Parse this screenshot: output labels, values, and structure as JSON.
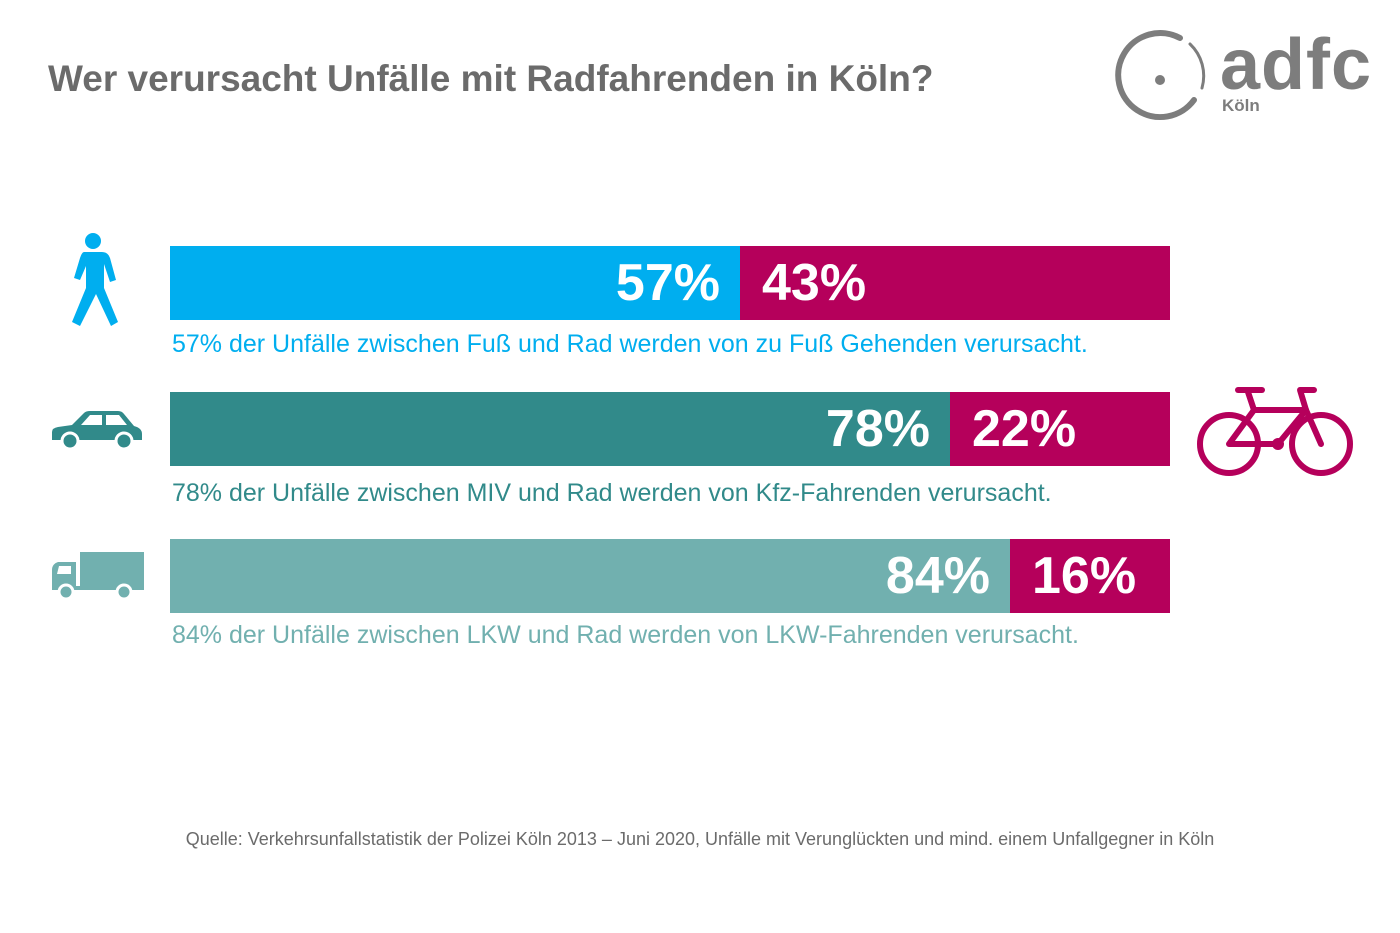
{
  "title": "Wer verursacht Unfälle mit Radfahrenden in Köln?",
  "logo": {
    "word": "adfc",
    "sub": "Köln"
  },
  "colors": {
    "bike_share": "#b5005b",
    "pedestrian": "#00aeef",
    "car": "#318a8a",
    "truck": "#71b0af",
    "title_text": "#6b6b6b"
  },
  "chart_data": {
    "type": "bar",
    "stacked": true,
    "orientation": "horizontal",
    "unit": "%",
    "categories": [
      {
        "icon": "pedestrian-icon",
        "main_value": 57,
        "bike_value": 43,
        "main_label": "57%",
        "bike_label": "43%",
        "color": "#00aeef",
        "caption": "57% der Unfälle zwischen Fuß und Rad werden von zu Fuß Gehenden verursacht."
      },
      {
        "icon": "car-icon",
        "main_value": 78,
        "bike_value": 22,
        "main_label": "78%",
        "bike_label": "22%",
        "color": "#318a8a",
        "caption": "78% der Unfälle zwischen MIV und Rad werden von Kfz-Fahrenden verursacht."
      },
      {
        "icon": "truck-icon",
        "main_value": 84,
        "bike_value": 16,
        "main_label": "84%",
        "bike_label": "16%",
        "color": "#71b0af",
        "caption": "84% der Unfälle zwischen LKW und Rad werden von LKW-Fahrenden verursacht."
      }
    ],
    "bike_icon": "bicycle-icon"
  },
  "source": "Quelle: Verkehrsunfallstatistik der Polizei Köln 2013 – Juni 2020, Unfälle mit Verunglückten und mind. einem Unfallgegner in Köln"
}
